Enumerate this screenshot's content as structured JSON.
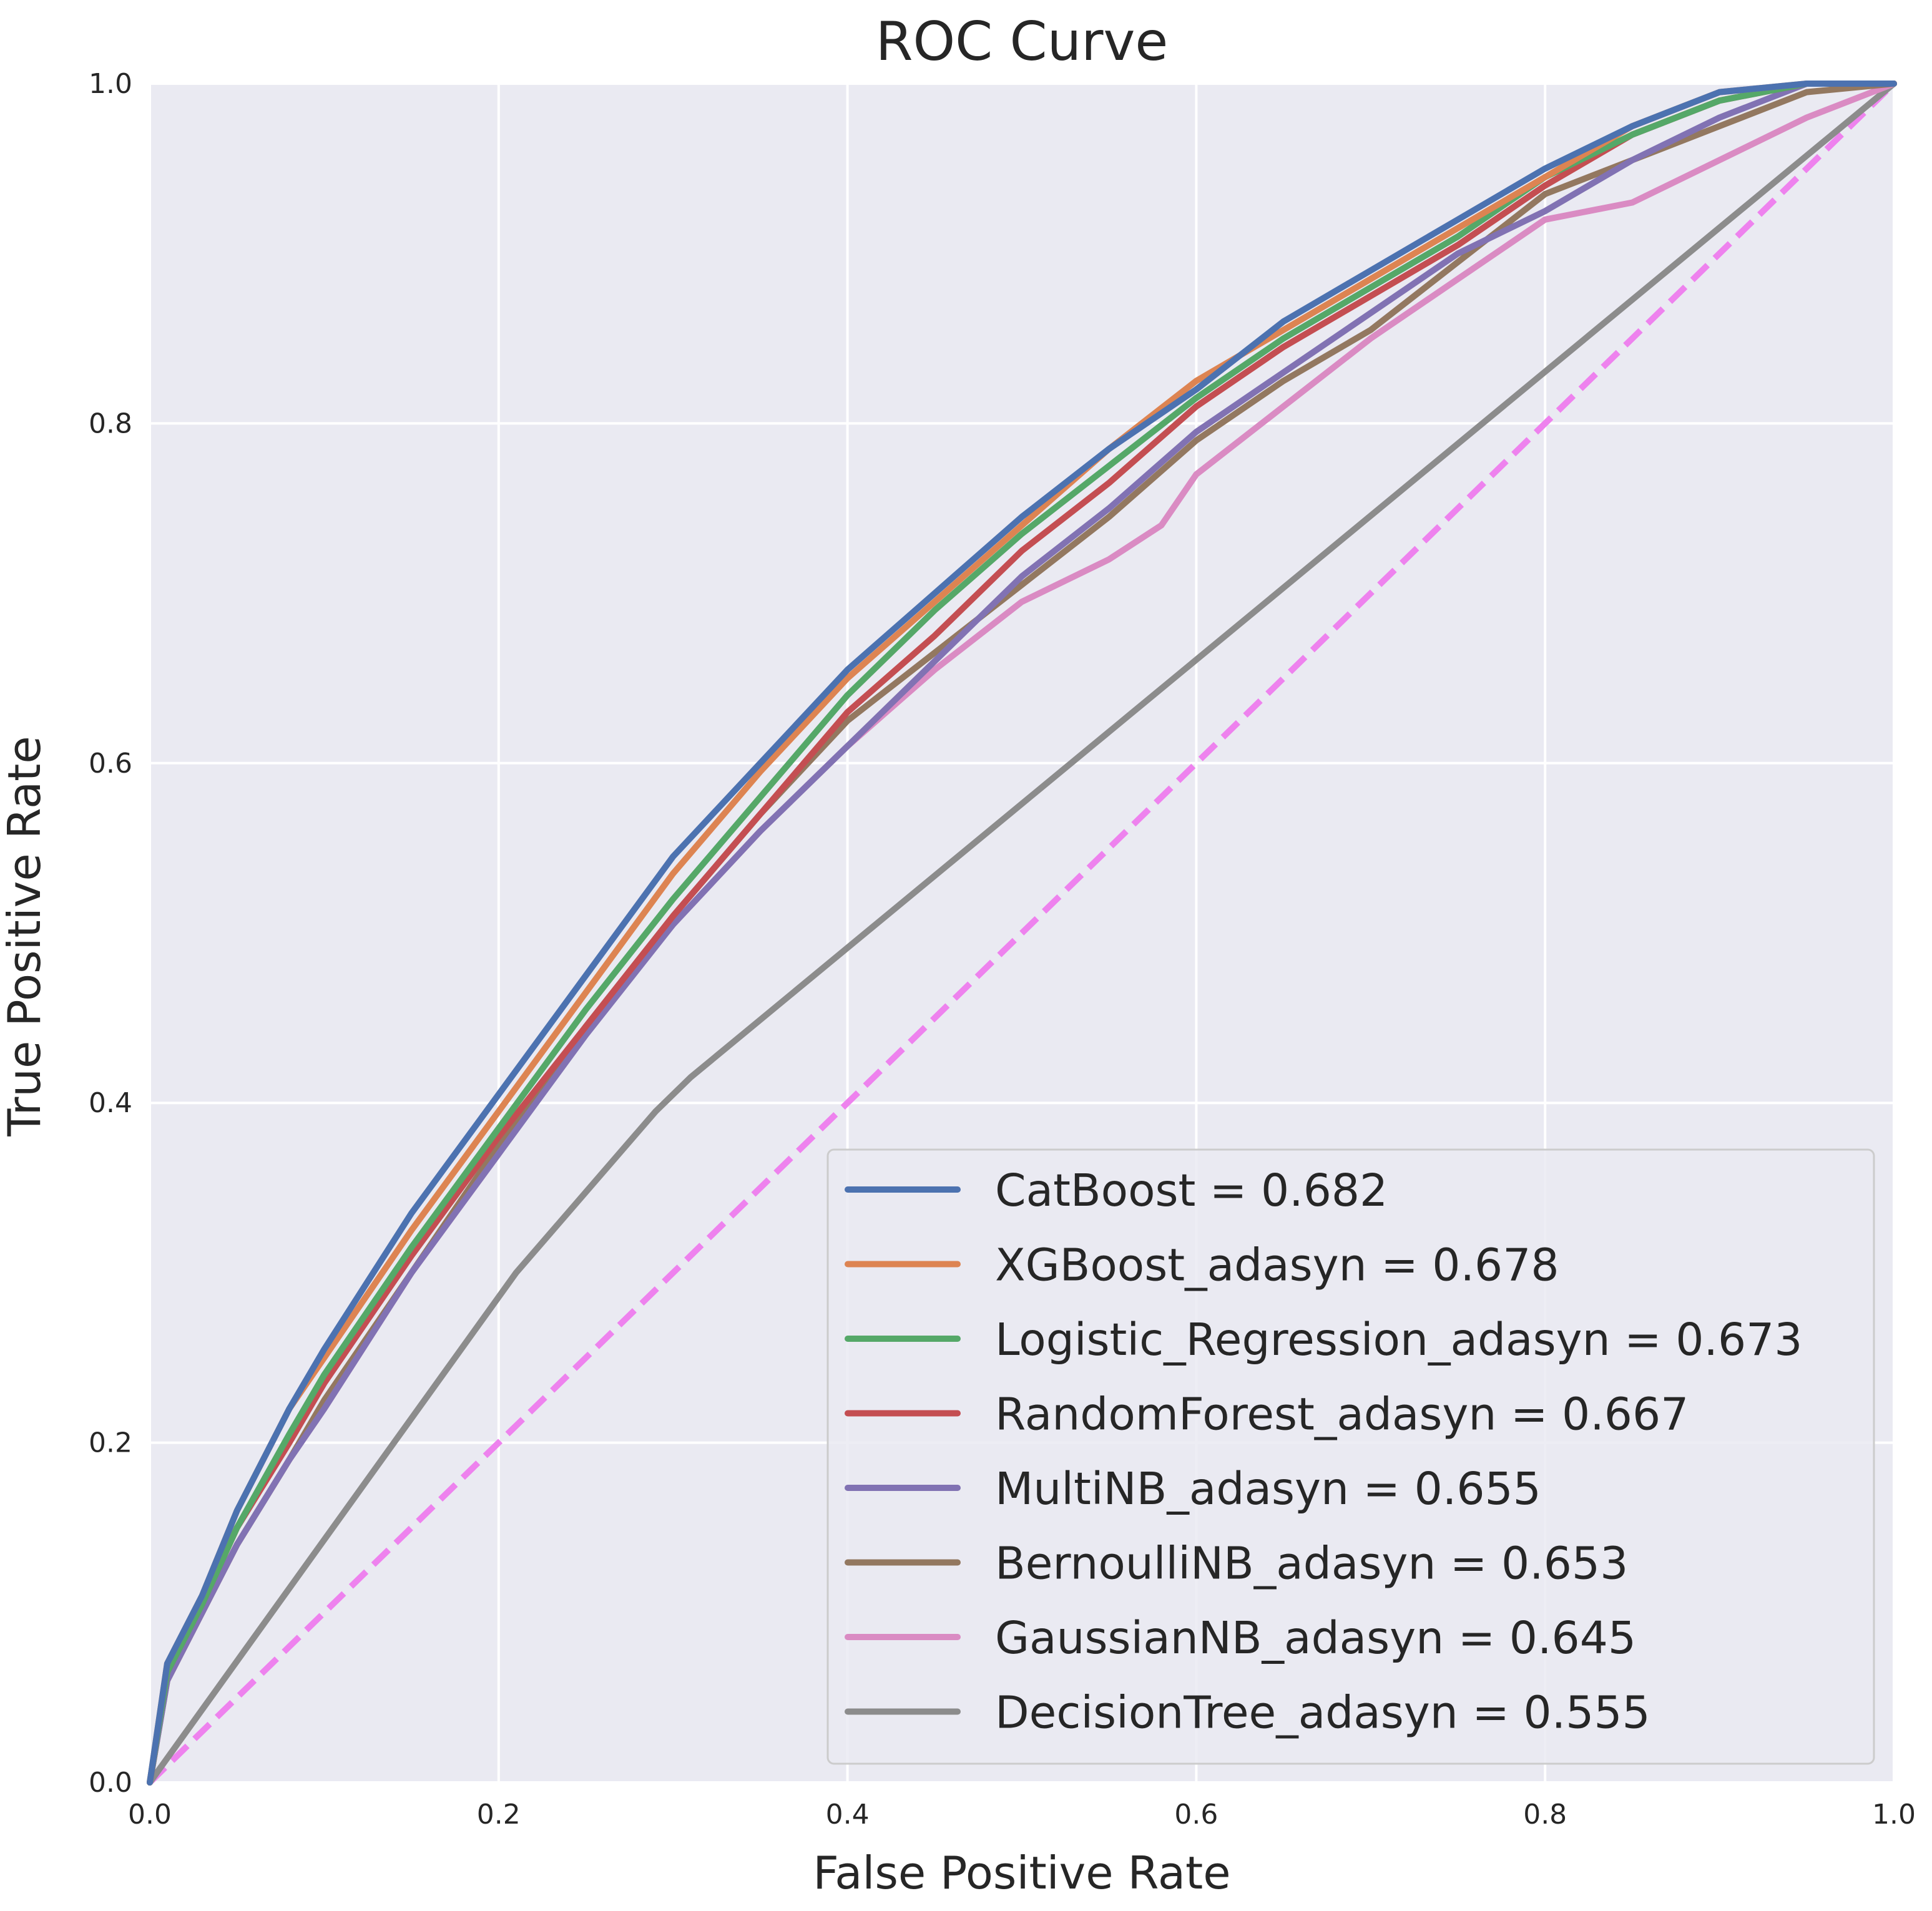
{
  "chart_data": {
    "type": "line",
    "title": "ROC Curve",
    "xlabel": "False Positive Rate",
    "ylabel": "True Positive Rate",
    "xlim": [
      0.0,
      1.0
    ],
    "ylim": [
      0.0,
      1.0
    ],
    "x_ticks": [
      "0.0",
      "0.2",
      "0.4",
      "0.6",
      "0.8",
      "1.0"
    ],
    "y_ticks": [
      "0.0",
      "0.2",
      "0.4",
      "0.6",
      "0.8",
      "1.0"
    ],
    "grid": true,
    "legend_position": "lower-right",
    "background_color": "#eaeaf2",
    "series": [
      {
        "name": "CatBoost = 0.682",
        "color": "#4c72b0",
        "points": [
          [
            0,
            0
          ],
          [
            0.01,
            0.07
          ],
          [
            0.03,
            0.11
          ],
          [
            0.05,
            0.16
          ],
          [
            0.08,
            0.22
          ],
          [
            0.1,
            0.255
          ],
          [
            0.15,
            0.335
          ],
          [
            0.2,
            0.405
          ],
          [
            0.25,
            0.475
          ],
          [
            0.3,
            0.545
          ],
          [
            0.35,
            0.6
          ],
          [
            0.4,
            0.655
          ],
          [
            0.45,
            0.7
          ],
          [
            0.5,
            0.745
          ],
          [
            0.55,
            0.785
          ],
          [
            0.6,
            0.82
          ],
          [
            0.65,
            0.86
          ],
          [
            0.7,
            0.89
          ],
          [
            0.75,
            0.92
          ],
          [
            0.8,
            0.95
          ],
          [
            0.85,
            0.975
          ],
          [
            0.9,
            0.995
          ],
          [
            0.95,
            1.0
          ],
          [
            1.0,
            1.0
          ]
        ]
      },
      {
        "name": "XGBoost_adasyn = 0.678",
        "color": "#dd8452",
        "points": [
          [
            0,
            0
          ],
          [
            0.01,
            0.07
          ],
          [
            0.03,
            0.11
          ],
          [
            0.05,
            0.16
          ],
          [
            0.08,
            0.22
          ],
          [
            0.1,
            0.25
          ],
          [
            0.15,
            0.325
          ],
          [
            0.2,
            0.395
          ],
          [
            0.25,
            0.465
          ],
          [
            0.3,
            0.535
          ],
          [
            0.35,
            0.595
          ],
          [
            0.4,
            0.65
          ],
          [
            0.45,
            0.695
          ],
          [
            0.5,
            0.74
          ],
          [
            0.55,
            0.785
          ],
          [
            0.6,
            0.825
          ],
          [
            0.65,
            0.855
          ],
          [
            0.7,
            0.885
          ],
          [
            0.75,
            0.915
          ],
          [
            0.8,
            0.945
          ],
          [
            0.85,
            0.975
          ],
          [
            0.9,
            0.995
          ],
          [
            0.95,
            1.0
          ],
          [
            1.0,
            1.0
          ]
        ]
      },
      {
        "name": "Logistic_Regression_adasyn = 0.673",
        "color": "#55a868",
        "points": [
          [
            0,
            0
          ],
          [
            0.01,
            0.065
          ],
          [
            0.03,
            0.105
          ],
          [
            0.05,
            0.15
          ],
          [
            0.08,
            0.205
          ],
          [
            0.1,
            0.24
          ],
          [
            0.15,
            0.315
          ],
          [
            0.2,
            0.385
          ],
          [
            0.25,
            0.455
          ],
          [
            0.3,
            0.52
          ],
          [
            0.35,
            0.58
          ],
          [
            0.4,
            0.64
          ],
          [
            0.45,
            0.69
          ],
          [
            0.5,
            0.735
          ],
          [
            0.55,
            0.775
          ],
          [
            0.6,
            0.815
          ],
          [
            0.65,
            0.85
          ],
          [
            0.7,
            0.88
          ],
          [
            0.75,
            0.91
          ],
          [
            0.8,
            0.945
          ],
          [
            0.85,
            0.97
          ],
          [
            0.9,
            0.99
          ],
          [
            0.95,
            1.0
          ],
          [
            1.0,
            1.0
          ]
        ]
      },
      {
        "name": "RandomForest_adasyn = 0.667",
        "color": "#c44e52",
        "points": [
          [
            0,
            0
          ],
          [
            0.01,
            0.065
          ],
          [
            0.03,
            0.105
          ],
          [
            0.05,
            0.15
          ],
          [
            0.08,
            0.2
          ],
          [
            0.1,
            0.235
          ],
          [
            0.15,
            0.31
          ],
          [
            0.2,
            0.38
          ],
          [
            0.25,
            0.445
          ],
          [
            0.3,
            0.51
          ],
          [
            0.35,
            0.57
          ],
          [
            0.4,
            0.63
          ],
          [
            0.45,
            0.675
          ],
          [
            0.5,
            0.725
          ],
          [
            0.55,
            0.765
          ],
          [
            0.6,
            0.81
          ],
          [
            0.65,
            0.845
          ],
          [
            0.7,
            0.875
          ],
          [
            0.75,
            0.905
          ],
          [
            0.8,
            0.94
          ],
          [
            0.85,
            0.97
          ],
          [
            0.9,
            0.99
          ],
          [
            0.95,
            1.0
          ],
          [
            1.0,
            1.0
          ]
        ]
      },
      {
        "name": "MultiNB_adasyn = 0.655",
        "color": "#8172b3",
        "points": [
          [
            0,
            0
          ],
          [
            0.01,
            0.06
          ],
          [
            0.03,
            0.1
          ],
          [
            0.05,
            0.14
          ],
          [
            0.08,
            0.19
          ],
          [
            0.1,
            0.22
          ],
          [
            0.15,
            0.3
          ],
          [
            0.2,
            0.37
          ],
          [
            0.25,
            0.44
          ],
          [
            0.3,
            0.505
          ],
          [
            0.35,
            0.56
          ],
          [
            0.4,
            0.61
          ],
          [
            0.45,
            0.66
          ],
          [
            0.5,
            0.71
          ],
          [
            0.55,
            0.75
          ],
          [
            0.6,
            0.795
          ],
          [
            0.65,
            0.83
          ],
          [
            0.7,
            0.865
          ],
          [
            0.75,
            0.9
          ],
          [
            0.8,
            0.925
          ],
          [
            0.85,
            0.955
          ],
          [
            0.9,
            0.98
          ],
          [
            0.95,
            1.0
          ],
          [
            1.0,
            1.0
          ]
        ]
      },
      {
        "name": "BernoulliNB_adasyn = 0.653",
        "color": "#937860",
        "points": [
          [
            0,
            0
          ],
          [
            0.01,
            0.06
          ],
          [
            0.03,
            0.1
          ],
          [
            0.05,
            0.14
          ],
          [
            0.08,
            0.19
          ],
          [
            0.1,
            0.225
          ],
          [
            0.15,
            0.3
          ],
          [
            0.2,
            0.375
          ],
          [
            0.25,
            0.445
          ],
          [
            0.3,
            0.51
          ],
          [
            0.35,
            0.57
          ],
          [
            0.4,
            0.625
          ],
          [
            0.45,
            0.665
          ],
          [
            0.5,
            0.705
          ],
          [
            0.55,
            0.745
          ],
          [
            0.6,
            0.79
          ],
          [
            0.65,
            0.825
          ],
          [
            0.7,
            0.855
          ],
          [
            0.75,
            0.895
          ],
          [
            0.8,
            0.935
          ],
          [
            0.85,
            0.955
          ],
          [
            0.9,
            0.975
          ],
          [
            0.95,
            0.995
          ],
          [
            1.0,
            1.0
          ]
        ]
      },
      {
        "name": "GaussianNB_adasyn = 0.645",
        "color": "#da8bc3",
        "points": [
          [
            0,
            0
          ],
          [
            0.01,
            0.06
          ],
          [
            0.03,
            0.1
          ],
          [
            0.05,
            0.14
          ],
          [
            0.08,
            0.19
          ],
          [
            0.1,
            0.22
          ],
          [
            0.15,
            0.3
          ],
          [
            0.2,
            0.37
          ],
          [
            0.25,
            0.445
          ],
          [
            0.3,
            0.505
          ],
          [
            0.35,
            0.56
          ],
          [
            0.4,
            0.61
          ],
          [
            0.45,
            0.655
          ],
          [
            0.5,
            0.695
          ],
          [
            0.55,
            0.72
          ],
          [
            0.58,
            0.74
          ],
          [
            0.6,
            0.77
          ],
          [
            0.65,
            0.81
          ],
          [
            0.7,
            0.85
          ],
          [
            0.75,
            0.885
          ],
          [
            0.8,
            0.92
          ],
          [
            0.85,
            0.93
          ],
          [
            0.9,
            0.955
          ],
          [
            0.95,
            0.98
          ],
          [
            1.0,
            1.0
          ]
        ]
      },
      {
        "name": "DecisionTree_adasyn = 0.555",
        "color": "#8c8c8c",
        "points": [
          [
            0,
            0
          ],
          [
            0.21,
            0.3
          ],
          [
            0.29,
            0.395
          ],
          [
            0.31,
            0.415
          ],
          [
            1.0,
            1.0
          ]
        ]
      }
    ],
    "baseline": {
      "color": "#ee82ee",
      "style": "dashed",
      "points": [
        [
          0,
          0
        ],
        [
          1,
          1
        ]
      ]
    }
  }
}
